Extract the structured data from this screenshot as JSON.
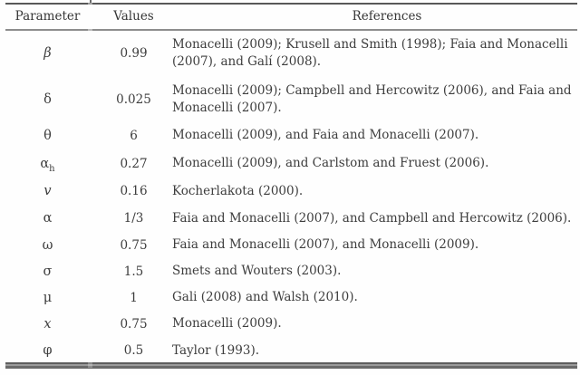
{
  "table": {
    "headers": {
      "parameter": "Parameter",
      "values": "Values",
      "references": "References"
    },
    "rows": [
      {
        "symbol": "β",
        "value": "0.99",
        "reference": "Monacelli (2009); Krusell and Smith (1998); Faia and Monacelli (2007), and Galí (2008)."
      },
      {
        "symbol": "δ",
        "value": "0.025",
        "reference": "Monacelli (2009); Campbell and Hercowitz (2006), and Faia and Monacelli (2007)."
      },
      {
        "symbol": "θ",
        "value": "6",
        "reference": "Monacelli (2009), and Faia and Monacelli (2007)."
      },
      {
        "symbol": "α",
        "sub": "h",
        "value": "0.27",
        "reference": "Monacelli (2009), and Carlstom and Fruest (2006)."
      },
      {
        "symbol": "v",
        "value": "0.16",
        "reference": "Kocherlakota (2000)."
      },
      {
        "symbol": "α",
        "value": "1/3",
        "reference": "Faia and Monacelli (2007), and Campbell and Hercowitz (2006)."
      },
      {
        "symbol": "ω",
        "value": "0.75",
        "reference": "Faia and Monacelli (2007), and Monacelli (2009)."
      },
      {
        "symbol": "σ",
        "value": "1.5",
        "reference": "Smets and Wouters (2003)."
      },
      {
        "symbol": "μ",
        "value": "1",
        "reference": "Gali (2008) and Walsh (2010)."
      },
      {
        "symbol": "x",
        "value": "0.75",
        "reference": "Monacelli (2009)."
      },
      {
        "symbol": "φ",
        "value": "0.5",
        "reference": "Taylor (1993)."
      }
    ]
  }
}
